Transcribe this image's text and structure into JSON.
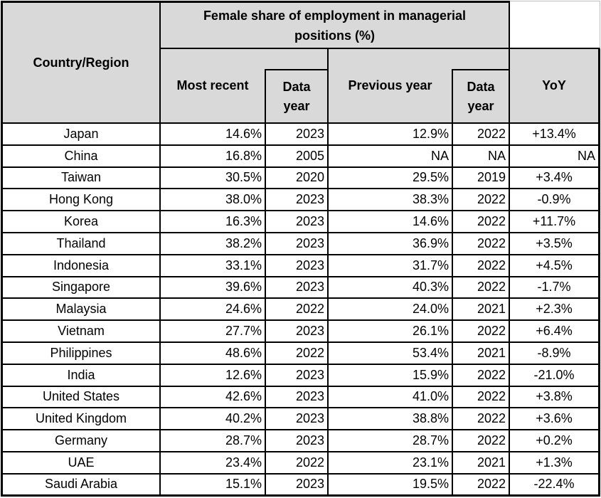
{
  "colors": {
    "header_bg": "#d9d9d9",
    "border": "#000000",
    "grid_light": "#bfbfbf",
    "text": "#000000"
  },
  "header": {
    "country_region": "Country/Region",
    "group_title": "Female share of employment in managerial positions (%)",
    "most_recent": "Most recent",
    "data_year": "Data year",
    "previous_year": "Previous year",
    "yoy": "YoY"
  },
  "chart_data": {
    "type": "table",
    "title": "Female share of employment in managerial positions (%)",
    "columns": [
      "Country/Region",
      "Most recent",
      "Data year",
      "Previous year",
      "Data year",
      "YoY"
    ],
    "rows": [
      {
        "country": "Japan",
        "most_recent": "14.6%",
        "data_year": "2023",
        "previous_year": "12.9%",
        "prev_data_year": "2022",
        "yoy": "+13.4%"
      },
      {
        "country": "China",
        "most_recent": "16.8%",
        "data_year": "2005",
        "previous_year": "NA",
        "prev_data_year": "NA",
        "yoy": "NA"
      },
      {
        "country": "Taiwan",
        "most_recent": "30.5%",
        "data_year": "2020",
        "previous_year": "29.5%",
        "prev_data_year": "2019",
        "yoy": "+3.4%"
      },
      {
        "country": "Hong Kong",
        "most_recent": "38.0%",
        "data_year": "2023",
        "previous_year": "38.3%",
        "prev_data_year": "2022",
        "yoy": "-0.9%"
      },
      {
        "country": "Korea",
        "most_recent": "16.3%",
        "data_year": "2023",
        "previous_year": "14.6%",
        "prev_data_year": "2022",
        "yoy": "+11.7%"
      },
      {
        "country": "Thailand",
        "most_recent": "38.2%",
        "data_year": "2023",
        "previous_year": "36.9%",
        "prev_data_year": "2022",
        "yoy": "+3.5%"
      },
      {
        "country": "Indonesia",
        "most_recent": "33.1%",
        "data_year": "2023",
        "previous_year": "31.7%",
        "prev_data_year": "2022",
        "yoy": "+4.5%"
      },
      {
        "country": "Singapore",
        "most_recent": "39.6%",
        "data_year": "2023",
        "previous_year": "40.3%",
        "prev_data_year": "2022",
        "yoy": "-1.7%"
      },
      {
        "country": "Malaysia",
        "most_recent": "24.6%",
        "data_year": "2022",
        "previous_year": "24.0%",
        "prev_data_year": "2021",
        "yoy": "+2.3%"
      },
      {
        "country": "Vietnam",
        "most_recent": "27.7%",
        "data_year": "2023",
        "previous_year": "26.1%",
        "prev_data_year": "2022",
        "yoy": "+6.4%"
      },
      {
        "country": "Philippines",
        "most_recent": "48.6%",
        "data_year": "2022",
        "previous_year": "53.4%",
        "prev_data_year": "2021",
        "yoy": "-8.9%"
      },
      {
        "country": "India",
        "most_recent": "12.6%",
        "data_year": "2023",
        "previous_year": "15.9%",
        "prev_data_year": "2022",
        "yoy": "-21.0%"
      },
      {
        "country": "United States",
        "most_recent": "42.6%",
        "data_year": "2023",
        "previous_year": "41.0%",
        "prev_data_year": "2022",
        "yoy": "+3.8%"
      },
      {
        "country": "United Kingdom",
        "most_recent": "40.2%",
        "data_year": "2023",
        "previous_year": "38.8%",
        "prev_data_year": "2022",
        "yoy": "+3.6%"
      },
      {
        "country": "Germany",
        "most_recent": "28.7%",
        "data_year": "2023",
        "previous_year": "28.7%",
        "prev_data_year": "2022",
        "yoy": "+0.2%"
      },
      {
        "country": "UAE",
        "most_recent": "23.4%",
        "data_year": "2022",
        "previous_year": "23.1%",
        "prev_data_year": "2021",
        "yoy": "+1.3%"
      },
      {
        "country": "Saudi Arabia",
        "most_recent": "15.1%",
        "data_year": "2023",
        "previous_year": "19.5%",
        "prev_data_year": "2022",
        "yoy": "-22.4%"
      }
    ]
  }
}
